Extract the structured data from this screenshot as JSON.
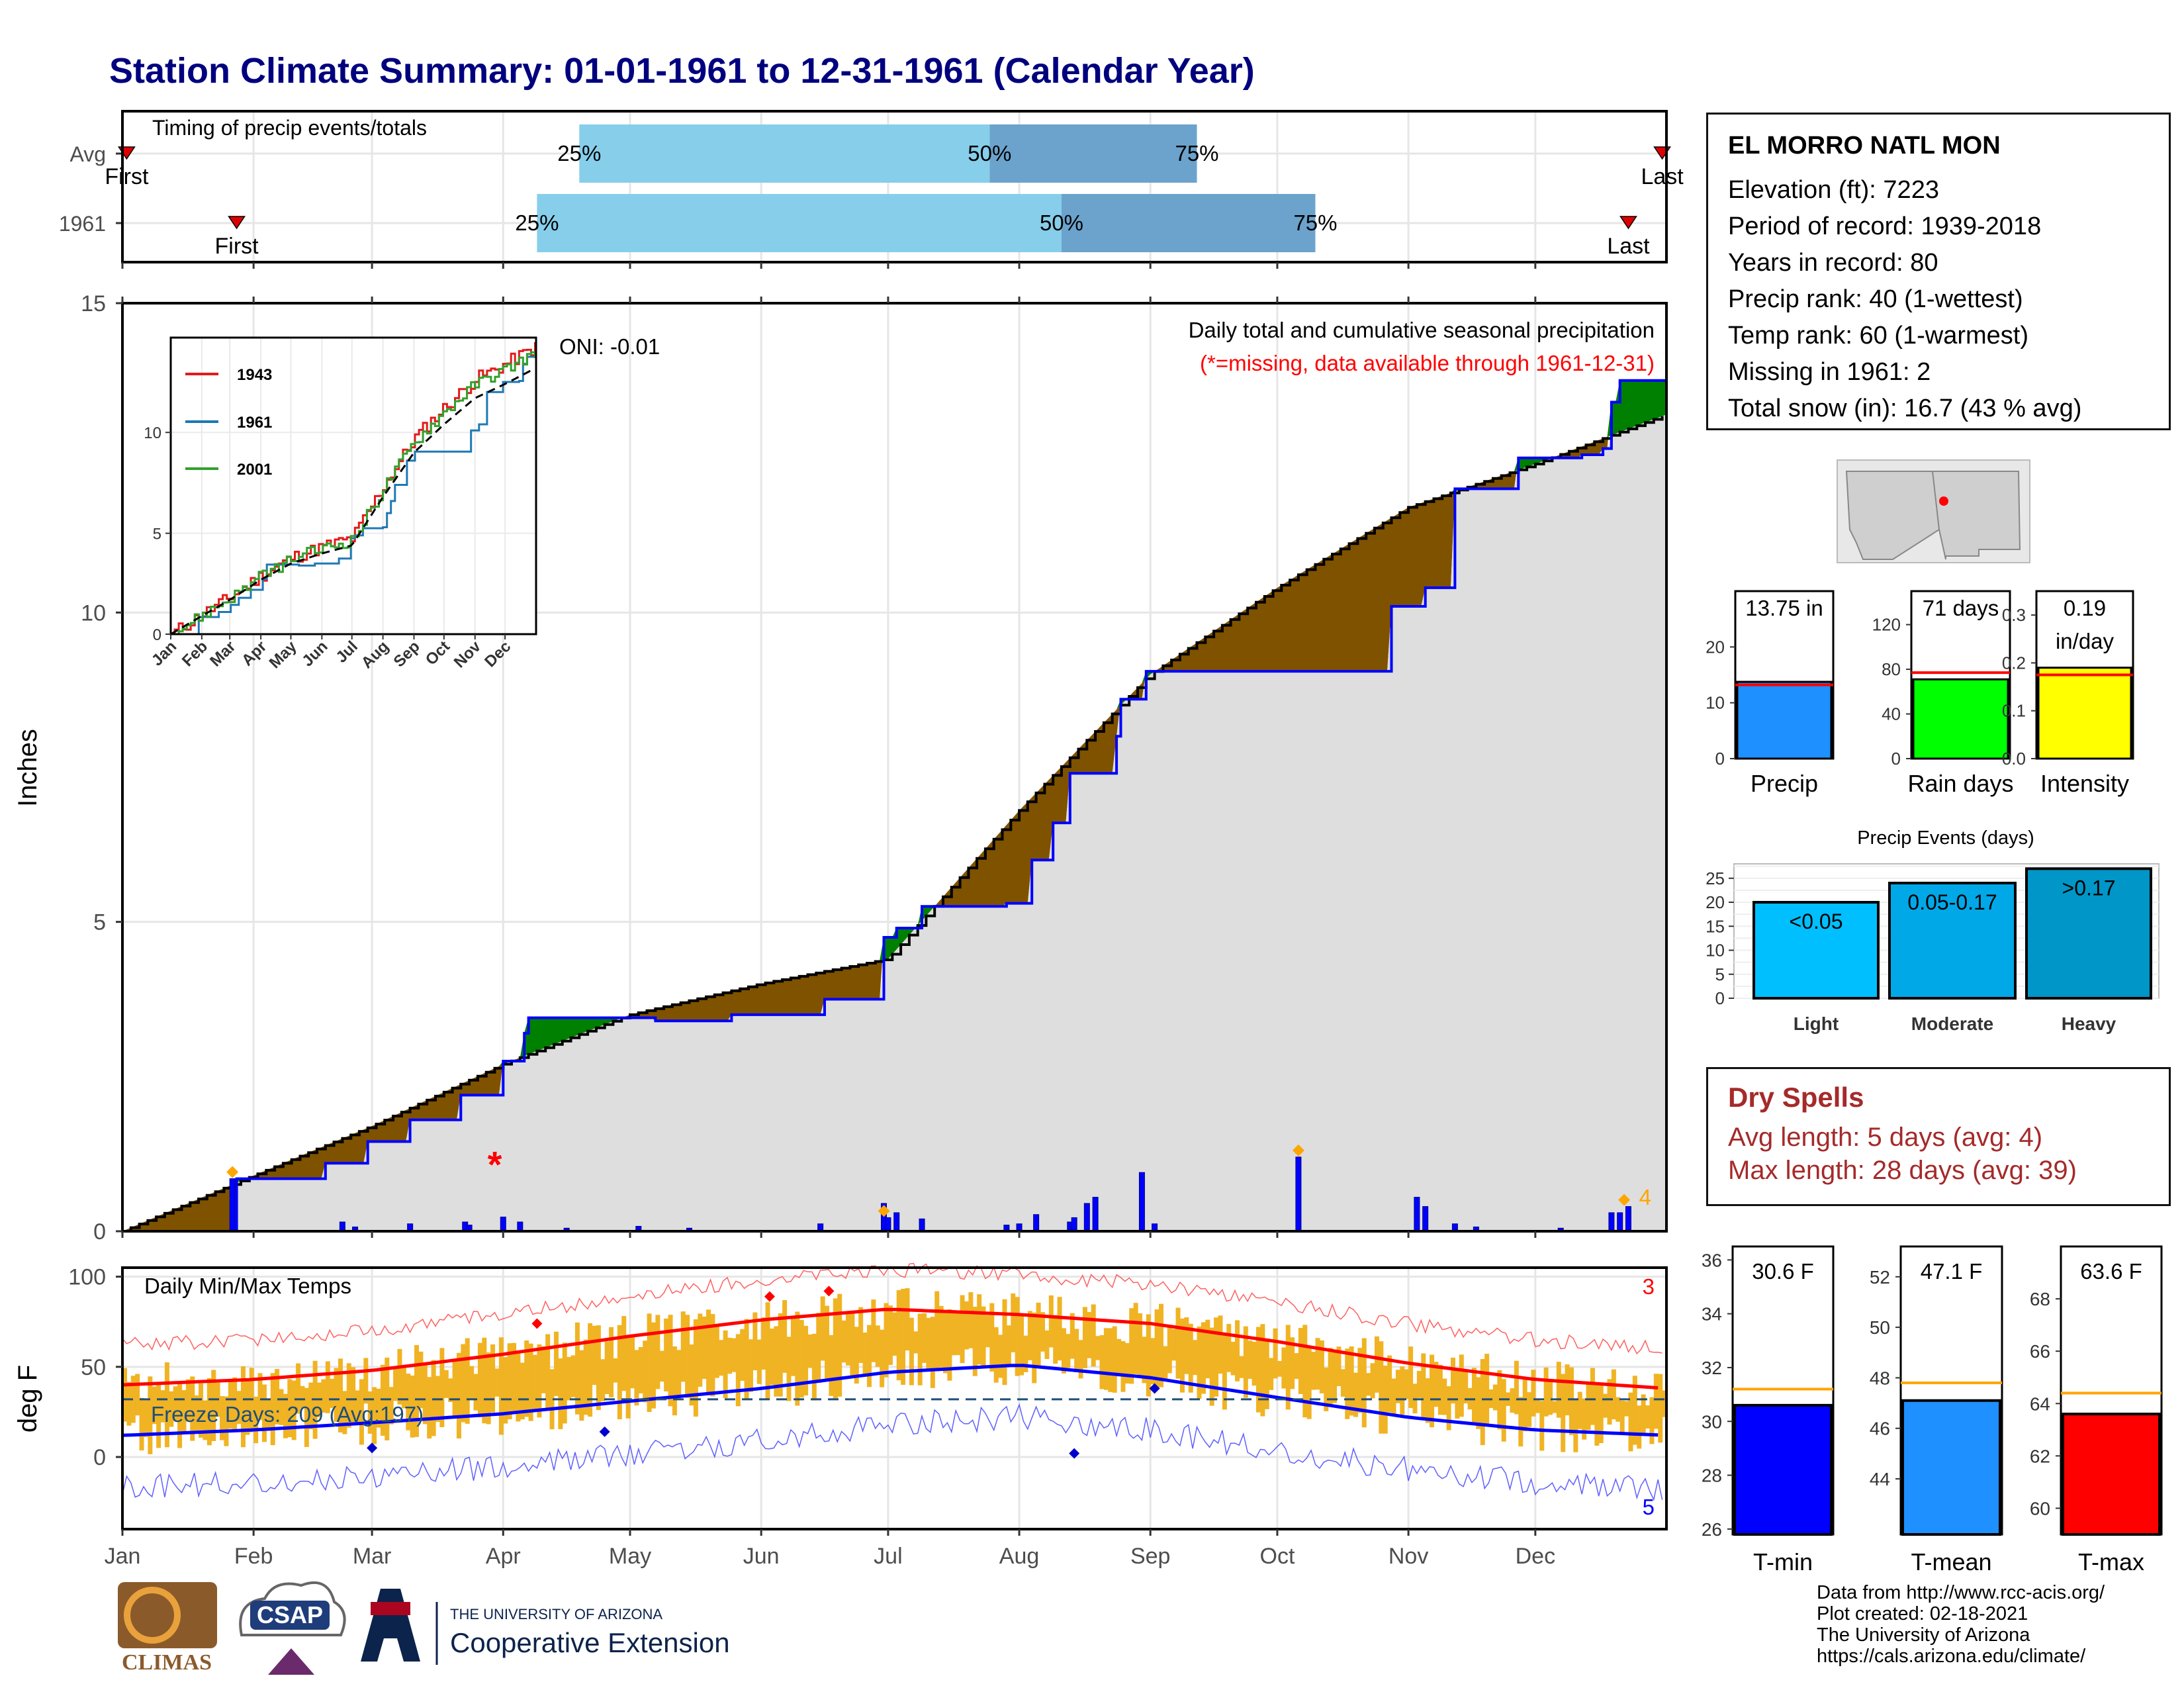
{
  "title": "Station Climate Summary: 01-01-1961 to 12-31-1961 (Calendar Year)",
  "timing": {
    "title": "Timing of precip events/totals",
    "rows": [
      {
        "label": "Avg",
        "first_doy": 1,
        "last_doy": 364,
        "p25": 108,
        "p50": 205,
        "p75": 254,
        "first_label": "First",
        "last_label": "Last",
        "p25_label": "25%",
        "p50_label": "50%",
        "p75_label": "75%"
      },
      {
        "label": "1961",
        "first_doy": 27,
        "last_doy": 356,
        "p25": 98,
        "p50": 222,
        "p75": 282,
        "first_label": "First",
        "last_label": "Last",
        "p25_label": "25%",
        "p50_label": "50%",
        "p75_label": "75%"
      }
    ]
  },
  "precip_panel": {
    "ylabel": "Inches",
    "yticks": [
      "0",
      "5",
      "10",
      "15"
    ],
    "caption": "Daily total and cumulative seasonal precipitation",
    "missing_note": "(*=missing, data available through 1961-12-31)",
    "oni": "ONI: -0.01",
    "count_label": "4",
    "months": [
      "Jan",
      "Feb",
      "Mar",
      "Apr",
      "May",
      "Jun",
      "Jul",
      "Aug",
      "Sep",
      "Oct",
      "Nov",
      "Dec"
    ]
  },
  "inset": {
    "legend": [
      "1943",
      "1961",
      "2001"
    ],
    "colors": [
      "#e31a1c",
      "#1f78b4",
      "#33a02c"
    ],
    "yticks": [
      "0",
      "5",
      "10"
    ],
    "months": [
      "Jan",
      "Feb",
      "Mar",
      "Apr",
      "May",
      "Jun",
      "Jul",
      "Aug",
      "Sep",
      "Oct",
      "Nov",
      "Dec"
    ]
  },
  "temp_panel": {
    "ylabel": "deg F",
    "title": "Daily Min/Max Temps",
    "freeze_label": "Freeze Days: 209 (Avg:197)",
    "yticks": [
      "0",
      "50",
      "100"
    ],
    "count_hi": "3",
    "count_lo": "5"
  },
  "station": {
    "name": "EL MORRO NATL MON",
    "lines": [
      "Elevation (ft): 7223",
      "Period of record: 1939-2018",
      "Years in record: 80",
      "Precip rank: 40 (1-wettest)",
      "Temp rank: 60 (1-warmest)",
      "Missing in 1961: 2",
      "Total snow (in): 16.7 (43 % avg)"
    ]
  },
  "summary_bars": [
    {
      "label": "Precip",
      "value": 13.75,
      "value_label": "13.75 in",
      "avg": 13.2,
      "ymax": 30,
      "yticks": [
        "0",
        "10",
        "20"
      ],
      "tickvals": [
        0,
        10,
        20
      ],
      "color": "#1e90ff"
    },
    {
      "label": "Rain days",
      "value": 71,
      "value_label": "71 days",
      "avg": 77,
      "ymax": 150,
      "yticks": [
        "0",
        "40",
        "80",
        "120"
      ],
      "tickvals": [
        0,
        40,
        80,
        120
      ],
      "color": "#00ff00"
    },
    {
      "label": "Intensity",
      "value": 0.19,
      "value_label": "0.19\nin/day",
      "avg": 0.175,
      "ymax": 0.35,
      "yticks": [
        "0.0",
        "0.1",
        "0.2",
        "0.3"
      ],
      "tickvals": [
        0,
        0.1,
        0.2,
        0.3
      ],
      "color": "#ffff00"
    }
  ],
  "events": {
    "title": "Precip Events (days)",
    "yticks": [
      "0",
      "5",
      "10",
      "15",
      "20",
      "25"
    ],
    "bars": [
      {
        "label": "Light",
        "range": "<0.05",
        "value": 20,
        "color": "#00bfff"
      },
      {
        "label": "Moderate",
        "range": "0.05-0.17",
        "value": 24,
        "color": "#00a8e8"
      },
      {
        "label": "Heavy",
        "range": ">0.17",
        "value": 27,
        "color": "#0096c8"
      }
    ]
  },
  "dry_spells": {
    "title": "Dry Spells",
    "avg_line": "Avg length: 5 days (avg: 4)",
    "max_line": "Max length: 28 days (avg: 39)"
  },
  "temp_bars": [
    {
      "label": "T-min",
      "value": 30.6,
      "value_label": "30.6 F",
      "avg": 31.2,
      "ymin": 25.8,
      "ymax": 36.5,
      "yticks": [
        "26",
        "28",
        "30",
        "32",
        "34",
        "36"
      ],
      "tickvals": [
        26,
        28,
        30,
        32,
        34,
        36
      ],
      "color": "#0000ff"
    },
    {
      "label": "T-mean",
      "value": 47.1,
      "value_label": "47.1 F",
      "avg": 47.8,
      "ymin": 41.8,
      "ymax": 53.2,
      "yticks": [
        "44",
        "46",
        "48",
        "50",
        "52"
      ],
      "tickvals": [
        44,
        46,
        48,
        50,
        52
      ],
      "color": "#1e90ff"
    },
    {
      "label": "T-max",
      "value": 63.6,
      "value_label": "63.6 F",
      "avg": 64.4,
      "ymin": 59.0,
      "ymax": 70.0,
      "yticks": [
        "60",
        "62",
        "64",
        "66",
        "68"
      ],
      "tickvals": [
        60,
        62,
        64,
        66,
        68
      ],
      "color": "#ff0000"
    }
  ],
  "credits": [
    "Data from http://www.rcc-acis.org/",
    "Plot created: 02-18-2021",
    "The University of Arizona",
    "https://cals.arizona.edu/climate/"
  ],
  "logos": {
    "climas": "CLIMAS",
    "csap": "CSAP",
    "ua_small": "THE UNIVERSITY OF ARIZONA",
    "ua_big": "Cooperative Extension"
  },
  "chart_data": [
    {
      "type": "area",
      "title": "Daily total and cumulative seasonal precipitation",
      "ylabel": "Inches",
      "ylim": [
        0,
        15
      ],
      "x_unit": "day of year",
      "cumulative_avg": {
        "x": [
          0,
          31,
          59,
          90,
          120,
          151,
          181,
          212,
          243,
          273,
          304,
          334,
          365
        ],
        "y": [
          0,
          0.9,
          1.7,
          2.7,
          3.5,
          4.0,
          4.4,
          6.8,
          9.0,
          10.4,
          11.7,
          12.4,
          13.2
        ]
      },
      "cumulative_1961": {
        "x": [
          0,
          26,
          27,
          48,
          58,
          68,
          80,
          90,
          95,
          96,
          105,
          126,
          144,
          166,
          180,
          183,
          189,
          209,
          215,
          220,
          224,
          235,
          236,
          242,
          278,
          300,
          308,
          315,
          330,
          345,
          350,
          352,
          354,
          364
        ],
        "y": [
          0,
          0,
          0.85,
          1.1,
          1.45,
          1.8,
          2.2,
          2.75,
          3.2,
          3.45,
          3.45,
          3.4,
          3.5,
          3.75,
          4.75,
          4.9,
          5.25,
          5.3,
          6.0,
          6.6,
          7.4,
          8.0,
          8.6,
          9.05,
          9.05,
          10.1,
          10.4,
          12.0,
          12.5,
          12.55,
          12.65,
          13.4,
          13.75,
          13.75
        ]
      },
      "daily": [
        [
          26,
          0.85
        ],
        [
          52,
          0.15
        ],
        [
          55,
          0.07
        ],
        [
          68,
          0.12
        ],
        [
          81,
          0.15
        ],
        [
          82,
          0.1
        ],
        [
          90,
          0.23
        ],
        [
          94,
          0.15
        ],
        [
          105,
          0.05
        ],
        [
          122,
          0.08
        ],
        [
          134,
          0.05
        ],
        [
          165,
          0.12
        ],
        [
          180,
          0.45
        ],
        [
          181,
          0.22
        ],
        [
          183,
          0.3
        ],
        [
          189,
          0.2
        ],
        [
          209,
          0.1
        ],
        [
          212,
          0.12
        ],
        [
          216,
          0.27
        ],
        [
          224,
          0.15
        ],
        [
          225,
          0.22
        ],
        [
          228,
          0.45
        ],
        [
          230,
          0.55
        ],
        [
          241,
          0.95
        ],
        [
          244,
          0.12
        ],
        [
          278,
          1.2
        ],
        [
          306,
          0.55
        ],
        [
          308,
          0.4
        ],
        [
          315,
          0.12
        ],
        [
          320,
          0.07
        ],
        [
          340,
          0.05
        ],
        [
          352,
          0.3
        ],
        [
          354,
          0.3
        ],
        [
          356,
          0.4
        ]
      ]
    },
    {
      "type": "line",
      "title": "",
      "series": [
        {
          "name": "1943"
        },
        {
          "name": "1961"
        },
        {
          "name": "2001"
        }
      ],
      "ylim": [
        0,
        15
      ]
    },
    {
      "type": "bar",
      "title": "Daily Min/Max Temps",
      "ylabel": "deg F",
      "ylim": [
        -40,
        105
      ],
      "freeze_line": 32,
      "avg_max": {
        "x": [
          0,
          31,
          59,
          90,
          120,
          151,
          181,
          212,
          243,
          273,
          304,
          334,
          365
        ],
        "y": [
          40,
          43,
          48,
          57,
          67,
          76,
          82,
          79,
          74,
          64,
          52,
          43,
          38
        ]
      },
      "avg_min": {
        "x": [
          0,
          31,
          59,
          90,
          120,
          151,
          181,
          212,
          243,
          273,
          304,
          334,
          365
        ],
        "y": [
          12,
          15,
          19,
          24,
          31,
          38,
          47,
          51,
          44,
          33,
          22,
          15,
          12
        ]
      }
    },
    {
      "type": "bar",
      "categories": [
        "Precip",
        "Rain days",
        "Intensity"
      ],
      "values": [
        13.75,
        71,
        0.19
      ]
    },
    {
      "type": "bar",
      "title": "Precip Events (days)",
      "categories": [
        "Light",
        "Moderate",
        "Heavy"
      ],
      "values": [
        20,
        24,
        27
      ]
    },
    {
      "type": "bar",
      "categories": [
        "T-min",
        "T-mean",
        "T-max"
      ],
      "values": [
        30.6,
        47.1,
        63.6
      ]
    }
  ]
}
